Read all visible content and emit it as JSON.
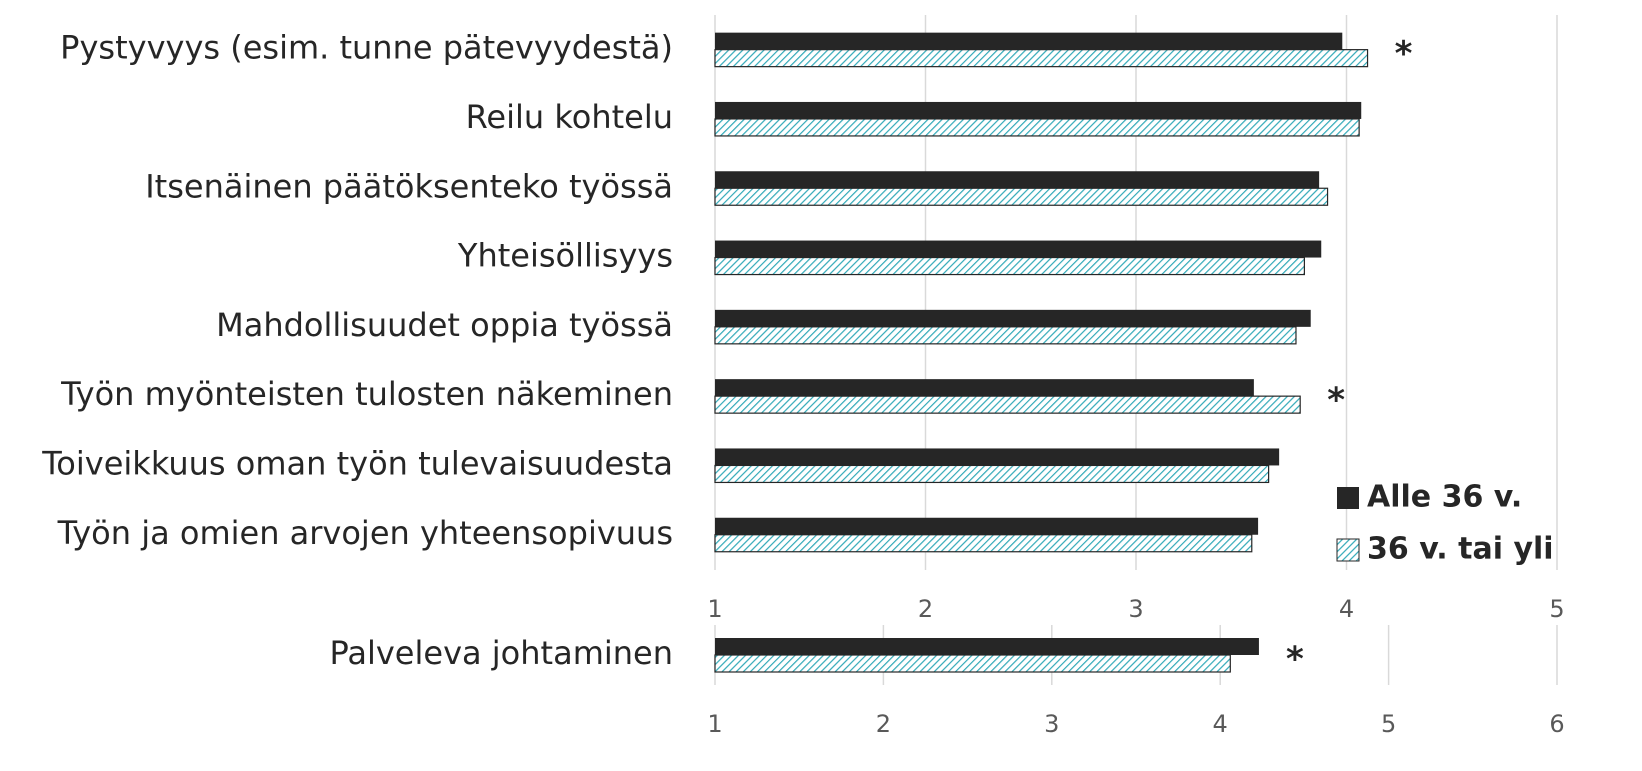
{
  "chart_data": [
    {
      "type": "bar",
      "orientation": "horizontal",
      "categories": [
        "Pystyvyys (esim. tunne pätevyydestä)",
        "Reilu kohtelu",
        "Itsenäinen päätöksenteko työssä",
        "Yhteisöllisyys",
        "Mahdollisuudet oppia työssä",
        "Työn myönteisten tulosten näkeminen",
        "Toiveikkuus oman työn tulevaisuudesta",
        "Työn ja omien arvojen yhteensopivuus"
      ],
      "series": [
        {
          "name": "Alle 36 v.",
          "color": "#262626",
          "values": [
            3.98,
            4.07,
            3.87,
            3.88,
            3.83,
            3.56,
            3.68,
            3.58
          ]
        },
        {
          "name": "36 v. tai yli",
          "color": "#31a9b8",
          "hatch": true,
          "values": [
            4.1,
            4.06,
            3.91,
            3.8,
            3.76,
            3.78,
            3.63,
            3.55
          ]
        }
      ],
      "markers": [
        "*",
        null,
        null,
        null,
        null,
        "*",
        null,
        null
      ],
      "xlim": [
        1,
        5
      ],
      "xticks": [
        1,
        2,
        3,
        4,
        5
      ],
      "grid": true,
      "legend": "lower right"
    },
    {
      "type": "bar",
      "orientation": "horizontal",
      "categories": [
        "Palveleva johtaminen"
      ],
      "series": [
        {
          "name": "Alle 36 v.",
          "color": "#262626",
          "values": [
            4.23
          ]
        },
        {
          "name": "36 v. tai yli",
          "color": "#31a9b8",
          "hatch": true,
          "values": [
            4.06
          ]
        }
      ],
      "markers": [
        "*"
      ],
      "xlim": [
        1,
        6
      ],
      "xticks": [
        1,
        2,
        3,
        4,
        5,
        6
      ],
      "grid": true
    }
  ]
}
